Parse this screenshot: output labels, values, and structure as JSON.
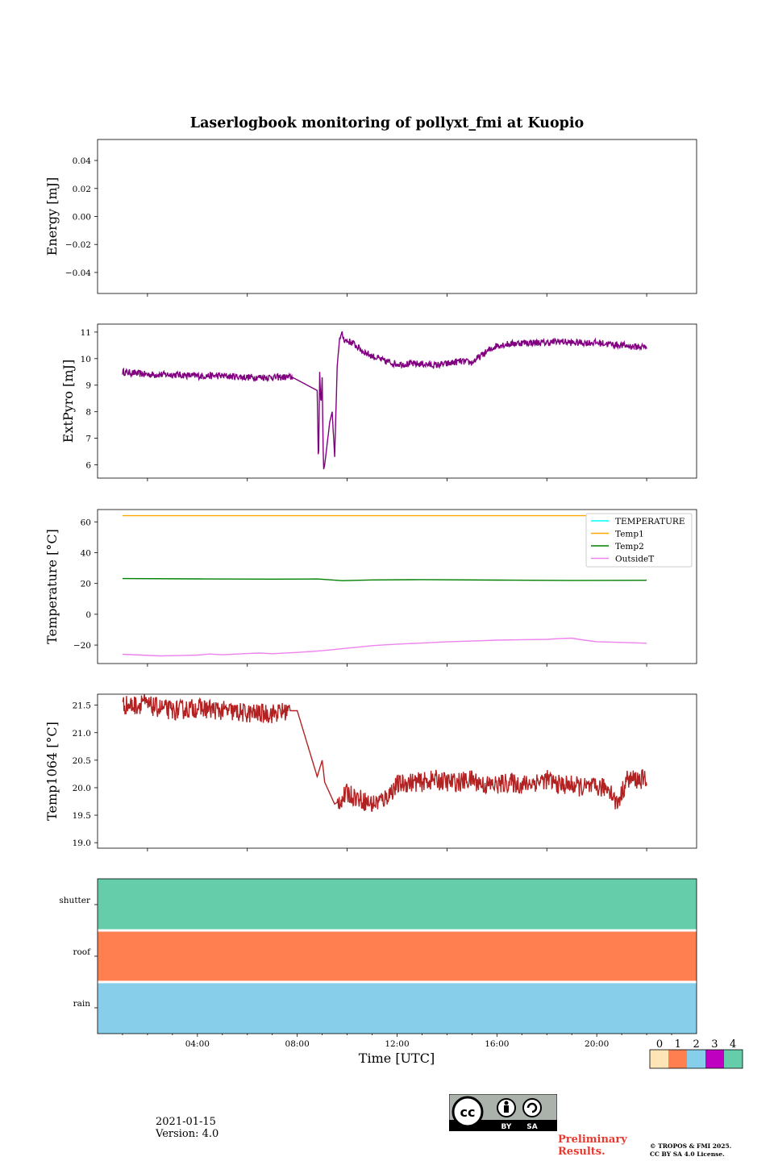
{
  "title": "Laserlogbook monitoring of pollyxt_fmi at Kuopio",
  "xlabel": "Time [UTC]",
  "date": "2021-01-15",
  "version": "Version: 4.0",
  "preliminary": [
    "Preliminary",
    "Results."
  ],
  "copyright": [
    "© TROPOS & FMI 2025.",
    "CC BY SA 4.0 License."
  ],
  "license_badge": {
    "by": "BY",
    "sa": "SA"
  },
  "colors": {
    "extpyro": "#800080",
    "temp1": "#ffa500",
    "temp2": "#008000",
    "outside": "#ee82ee",
    "temperature": "#00ffff",
    "temp1064": "#b22222",
    "status0": "#ffe4b5",
    "status1": "#ff7f50",
    "status2": "#87ceeb",
    "status3": "#c000c0",
    "status4": "#66cdaa"
  },
  "chart_data": [
    {
      "type": "line",
      "id": "energy",
      "ylabel": "Energy [mJ]",
      "ylim": [
        -0.055,
        0.055
      ],
      "yticks": [
        0.04,
        0.02,
        0.0,
        -0.02,
        -0.04
      ],
      "ytick_labels": [
        "0.04",
        "0.02",
        "0.00",
        "−0.02",
        "−0.04"
      ],
      "series": []
    },
    {
      "type": "line",
      "id": "extpyro",
      "ylabel": "ExtPyro [mJ]",
      "ylim": [
        5.5,
        11.3
      ],
      "yticks": [
        11,
        10,
        9,
        8,
        7,
        6
      ],
      "ytick_labels": [
        "11",
        "10",
        "9",
        "8",
        "7",
        "6"
      ],
      "series": [
        {
          "name": "ExtPyro",
          "color_key": "extpyro",
          "x": [
            1.0,
            2.0,
            3.0,
            4.0,
            5.0,
            6.0,
            7.0,
            7.8,
            8.8,
            8.85,
            8.9,
            8.95,
            9.0,
            9.05,
            9.1,
            9.2,
            9.3,
            9.4,
            9.5,
            9.6,
            9.7,
            9.8,
            9.9,
            10.2,
            10.6,
            11.0,
            11.5,
            12.0,
            12.5,
            13.0,
            13.5,
            14.0,
            14.5,
            15.0,
            15.5,
            16.0,
            16.5,
            17.0,
            17.5,
            18.0,
            18.5,
            19.0,
            19.5,
            20.0,
            20.5,
            21.0,
            21.5,
            22.0
          ],
          "y": [
            9.5,
            9.4,
            9.4,
            9.35,
            9.35,
            9.3,
            9.3,
            9.3,
            8.8,
            5.8,
            9.5,
            8.2,
            9.3,
            5.8,
            6.0,
            6.8,
            7.6,
            8.0,
            6.3,
            9.7,
            10.8,
            10.9,
            10.7,
            10.6,
            10.3,
            10.1,
            9.9,
            9.8,
            9.8,
            9.8,
            9.75,
            9.8,
            9.9,
            9.85,
            10.2,
            10.5,
            10.55,
            10.6,
            10.6,
            10.6,
            10.65,
            10.6,
            10.6,
            10.6,
            10.55,
            10.5,
            10.45,
            10.45
          ],
          "noise": 0.13
        }
      ]
    },
    {
      "type": "line",
      "id": "temperature",
      "ylabel": "Temperature [°C]",
      "ylim": [
        -32,
        68
      ],
      "yticks": [
        60,
        40,
        20,
        0,
        -20
      ],
      "ytick_labels": [
        "60",
        "40",
        "20",
        "0",
        "−20"
      ],
      "legend": [
        "TEMPERATURE",
        "Temp1",
        "Temp2",
        "OutsideT"
      ],
      "legend_color_keys": [
        "temperature",
        "temp1",
        "temp2",
        "outside"
      ],
      "series": [
        {
          "name": "Temp1",
          "color_key": "temp1",
          "x": [
            1.0,
            22.0
          ],
          "y": [
            64.0,
            64.0
          ]
        },
        {
          "name": "Temp2",
          "color_key": "temp2",
          "x": [
            1.0,
            4.0,
            7.0,
            8.8,
            9.8,
            11.0,
            13.0,
            16.0,
            19.0,
            22.0
          ],
          "y": [
            23.2,
            23.0,
            22.8,
            22.9,
            21.8,
            22.3,
            22.5,
            22.2,
            22.0,
            22.1
          ]
        },
        {
          "name": "OutsideT",
          "color_key": "outside",
          "x": [
            1.0,
            2.5,
            3.3,
            4.0,
            4.5,
            5.0,
            6.0,
            6.5,
            7.0,
            8.0,
            9.0,
            10.0,
            10.5,
            11.0,
            12.0,
            13.0,
            14.0,
            15.0,
            16.0,
            17.0,
            18.0,
            18.5,
            19.0,
            19.5,
            20.0,
            21.0,
            22.0
          ],
          "y": [
            -26.0,
            -27.0,
            -26.8,
            -26.5,
            -25.8,
            -26.3,
            -25.5,
            -25.2,
            -25.6,
            -24.8,
            -23.7,
            -22.0,
            -21.2,
            -20.4,
            -19.4,
            -18.7,
            -17.9,
            -17.4,
            -16.8,
            -16.5,
            -16.3,
            -15.8,
            -15.5,
            -16.8,
            -17.8,
            -18.3,
            -18.8
          ]
        }
      ]
    },
    {
      "type": "line",
      "id": "temp1064",
      "ylabel": "Temp1064 [°C]",
      "ylim": [
        18.9,
        21.7
      ],
      "yticks": [
        21.5,
        21.0,
        20.5,
        20.0,
        19.5,
        19.0
      ],
      "ytick_labels": [
        "21.5",
        "21.0",
        "20.5",
        "20.0",
        "19.5",
        "19.0"
      ],
      "series": [
        {
          "name": "Temp1064",
          "color_key": "temp1064",
          "x": [
            1.0,
            1.7,
            1.75,
            1.85,
            1.9,
            2.5,
            3.0,
            4.0,
            5.0,
            6.0,
            7.0,
            7.7,
            8.0,
            8.8,
            9.0,
            9.1,
            9.2,
            9.5,
            9.8,
            10.0,
            10.5,
            11.0,
            11.5,
            12.0,
            12.5,
            13.0,
            13.5,
            14.0,
            14.5,
            15.0,
            15.5,
            16.0,
            16.5,
            17.0,
            17.5,
            18.0,
            18.5,
            19.0,
            19.5,
            20.0,
            20.5,
            20.8,
            21.0,
            21.2,
            21.5,
            22.0
          ],
          "y": [
            21.5,
            21.5,
            21.6,
            21.6,
            21.5,
            21.45,
            21.4,
            21.45,
            21.4,
            21.35,
            21.35,
            21.4,
            21.4,
            20.2,
            20.5,
            20.1,
            20.0,
            19.7,
            19.8,
            19.9,
            19.8,
            19.7,
            19.8,
            20.05,
            20.1,
            20.1,
            20.15,
            20.1,
            20.1,
            20.15,
            20.05,
            20.05,
            20.1,
            20.05,
            20.1,
            20.15,
            20.05,
            20.05,
            20.0,
            20.0,
            20.0,
            19.7,
            19.9,
            20.15,
            20.15,
            20.15
          ],
          "noise": 0.18
        }
      ]
    },
    {
      "type": "heatmap",
      "id": "status",
      "rows": [
        "shutter",
        "roof",
        "rain"
      ],
      "row_values": [
        4,
        1,
        2
      ],
      "xlim_hours": [
        0.0,
        24.0
      ],
      "xticks": [
        4,
        8,
        12,
        16,
        20
      ],
      "xtick_labels": [
        "04:00",
        "08:00",
        "12:00",
        "16:00",
        "20:00"
      ],
      "colorbar_ticks": [
        0,
        1,
        2,
        3,
        4
      ],
      "colorbar_labels": [
        "0",
        "1",
        "2",
        "3",
        "4"
      ]
    }
  ]
}
